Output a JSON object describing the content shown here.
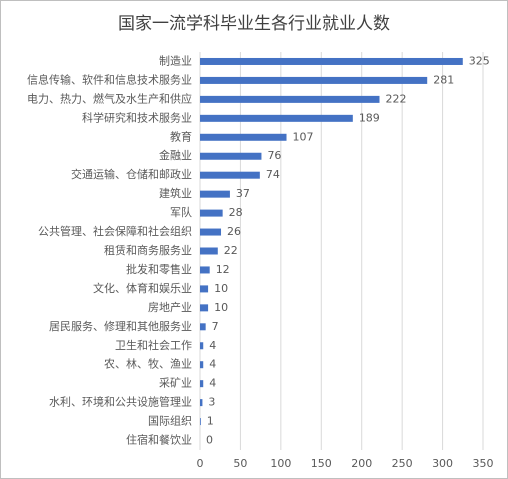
{
  "chart_data": {
    "type": "bar",
    "orientation": "horizontal",
    "title": "国家一流学科毕业生各行业就业人数",
    "categories": [
      "制造业",
      "信息传输、软件和信息技术服务业",
      "电力、热力、燃气及水生产和供应",
      "科学研究和技术服务业",
      "教育",
      "金融业",
      "交通运输、仓储和邮政业",
      "建筑业",
      "军队",
      "公共管理、社会保障和社会组织",
      "租赁和商务服务业",
      "批发和零售业",
      "文化、体育和娱乐业",
      "房地产业",
      "居民服务、修理和其他服务业",
      "卫生和社会工作",
      "农、林、牧、渔业",
      "采矿业",
      "水利、环境和公共设施管理业",
      "国际组织",
      "住宿和餐饮业"
    ],
    "values": [
      325,
      281,
      222,
      189,
      107,
      76,
      74,
      37,
      28,
      26,
      22,
      12,
      10,
      10,
      7,
      4,
      4,
      4,
      3,
      1,
      0
    ],
    "color": "#4472c4",
    "xlim": [
      0,
      350
    ],
    "xticks": [
      0,
      50,
      100,
      150,
      200,
      250,
      300,
      350
    ],
    "grid": true
  }
}
